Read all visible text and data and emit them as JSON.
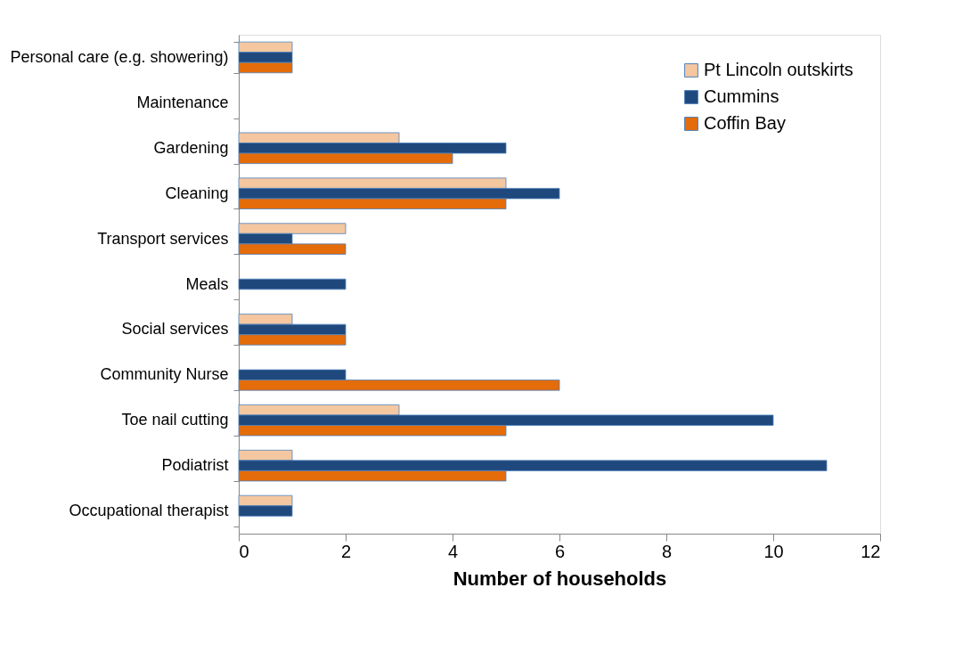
{
  "chart_data": {
    "type": "bar",
    "orientation": "horizontal",
    "xlabel": "Number of households",
    "categories": [
      "Personal care (e.g. showering)",
      "Maintenance",
      "Gardening",
      "Cleaning",
      "Transport services",
      "Meals",
      "Social services",
      "Community Nurse",
      "Toe nail cutting",
      "Podiatrist",
      "Occupational therapist"
    ],
    "series": [
      {
        "name": "Pt Lincoln outskirts",
        "color": "#f4c7a1",
        "values": [
          1,
          null,
          3,
          5,
          2,
          null,
          1,
          null,
          3,
          1,
          1
        ]
      },
      {
        "name": "Cummins",
        "color": "#1f497d",
        "values": [
          1,
          null,
          5,
          6,
          1,
          2,
          2,
          2,
          10,
          11,
          1
        ]
      },
      {
        "name": "Coffin Bay",
        "color": "#e46c0a",
        "values": [
          1,
          null,
          4,
          5,
          2,
          null,
          2,
          6,
          5,
          5,
          null
        ]
      }
    ],
    "xlim": [
      0,
      12
    ],
    "xticks": [
      0,
      2,
      4,
      6,
      8,
      10,
      12
    ],
    "grid": false,
    "legend": "top right"
  }
}
